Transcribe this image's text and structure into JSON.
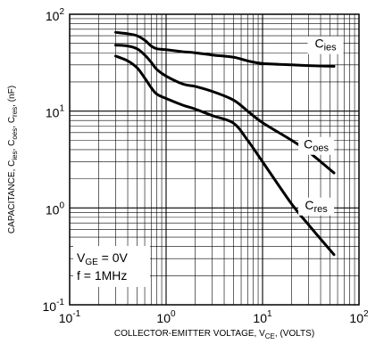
{
  "chart_data": {
    "type": "line",
    "xscale": "log",
    "yscale": "log",
    "xlim": [
      0.1,
      100
    ],
    "ylim": [
      0.1,
      100
    ],
    "grid": true,
    "xlabel": {
      "main": "COLLECTOR-EMITTER VOLTAGE, V",
      "sub": "CE",
      "tail": ", (VOLTS)"
    },
    "ylabel": {
      "parts": [
        {
          "t": "CAPACITANCE, C",
          "sub": false
        },
        {
          "t": "ies",
          "sub": true
        },
        {
          "t": ", C",
          "sub": false
        },
        {
          "t": "oes",
          "sub": true
        },
        {
          "t": ", C",
          "sub": false
        },
        {
          "t": "res",
          "sub": true
        },
        {
          "t": ", (nF)",
          "sub": false
        }
      ]
    },
    "x_ticks": [
      {
        "value": 0.1,
        "base": "10",
        "exp": "-1"
      },
      {
        "value": 1,
        "base": "10",
        "exp": "0"
      },
      {
        "value": 10,
        "base": "10",
        "exp": "1"
      },
      {
        "value": 100,
        "base": "10",
        "exp": "2"
      }
    ],
    "y_ticks": [
      {
        "value": 0.1,
        "base": "10",
        "exp": "-1"
      },
      {
        "value": 1,
        "base": "10",
        "exp": "0"
      },
      {
        "value": 10,
        "base": "10",
        "exp": "1"
      },
      {
        "value": 100,
        "base": "10",
        "exp": "2"
      }
    ],
    "series": [
      {
        "label_main": "C",
        "label_sub": "ies",
        "label_at": [
          45,
          45
        ],
        "points": [
          [
            0.3,
            65
          ],
          [
            0.4,
            63
          ],
          [
            0.5,
            60
          ],
          [
            0.6,
            54
          ],
          [
            0.7,
            47
          ],
          [
            0.8,
            44
          ],
          [
            1,
            43
          ],
          [
            1.5,
            41
          ],
          [
            2,
            40
          ],
          [
            3,
            38
          ],
          [
            5,
            36
          ],
          [
            7,
            33
          ],
          [
            10,
            31
          ],
          [
            20,
            30
          ],
          [
            30,
            29.5
          ],
          [
            55,
            29
          ]
        ]
      },
      {
        "label_main": "C",
        "label_sub": "oes",
        "label_at": [
          36,
          4.1
        ],
        "points": [
          [
            0.3,
            48
          ],
          [
            0.4,
            47
          ],
          [
            0.5,
            44
          ],
          [
            0.6,
            38
          ],
          [
            0.7,
            32
          ],
          [
            0.8,
            27
          ],
          [
            1,
            23
          ],
          [
            1.5,
            19
          ],
          [
            2,
            18
          ],
          [
            3,
            16
          ],
          [
            5,
            13
          ],
          [
            7,
            10
          ],
          [
            10,
            7.6
          ],
          [
            20,
            5
          ],
          [
            30,
            3.8
          ],
          [
            55,
            2.3
          ]
        ]
      },
      {
        "label_main": "C",
        "label_sub": "res",
        "label_at": [
          36,
          0.97
        ],
        "points": [
          [
            0.3,
            37
          ],
          [
            0.4,
            33
          ],
          [
            0.5,
            28
          ],
          [
            0.6,
            22
          ],
          [
            0.7,
            17.5
          ],
          [
            0.8,
            15
          ],
          [
            1,
            13.5
          ],
          [
            1.5,
            11.5
          ],
          [
            2,
            10.5
          ],
          [
            3,
            9
          ],
          [
            5,
            7.5
          ],
          [
            7,
            5
          ],
          [
            10,
            3
          ],
          [
            20,
            1.1
          ],
          [
            30,
            0.67
          ],
          [
            55,
            0.33
          ]
        ]
      }
    ],
    "annotation": [
      {
        "main": "V",
        "sub": "GE",
        "tail": " = 0V"
      },
      {
        "main": "f = 1MHz",
        "sub": "",
        "tail": ""
      }
    ]
  }
}
